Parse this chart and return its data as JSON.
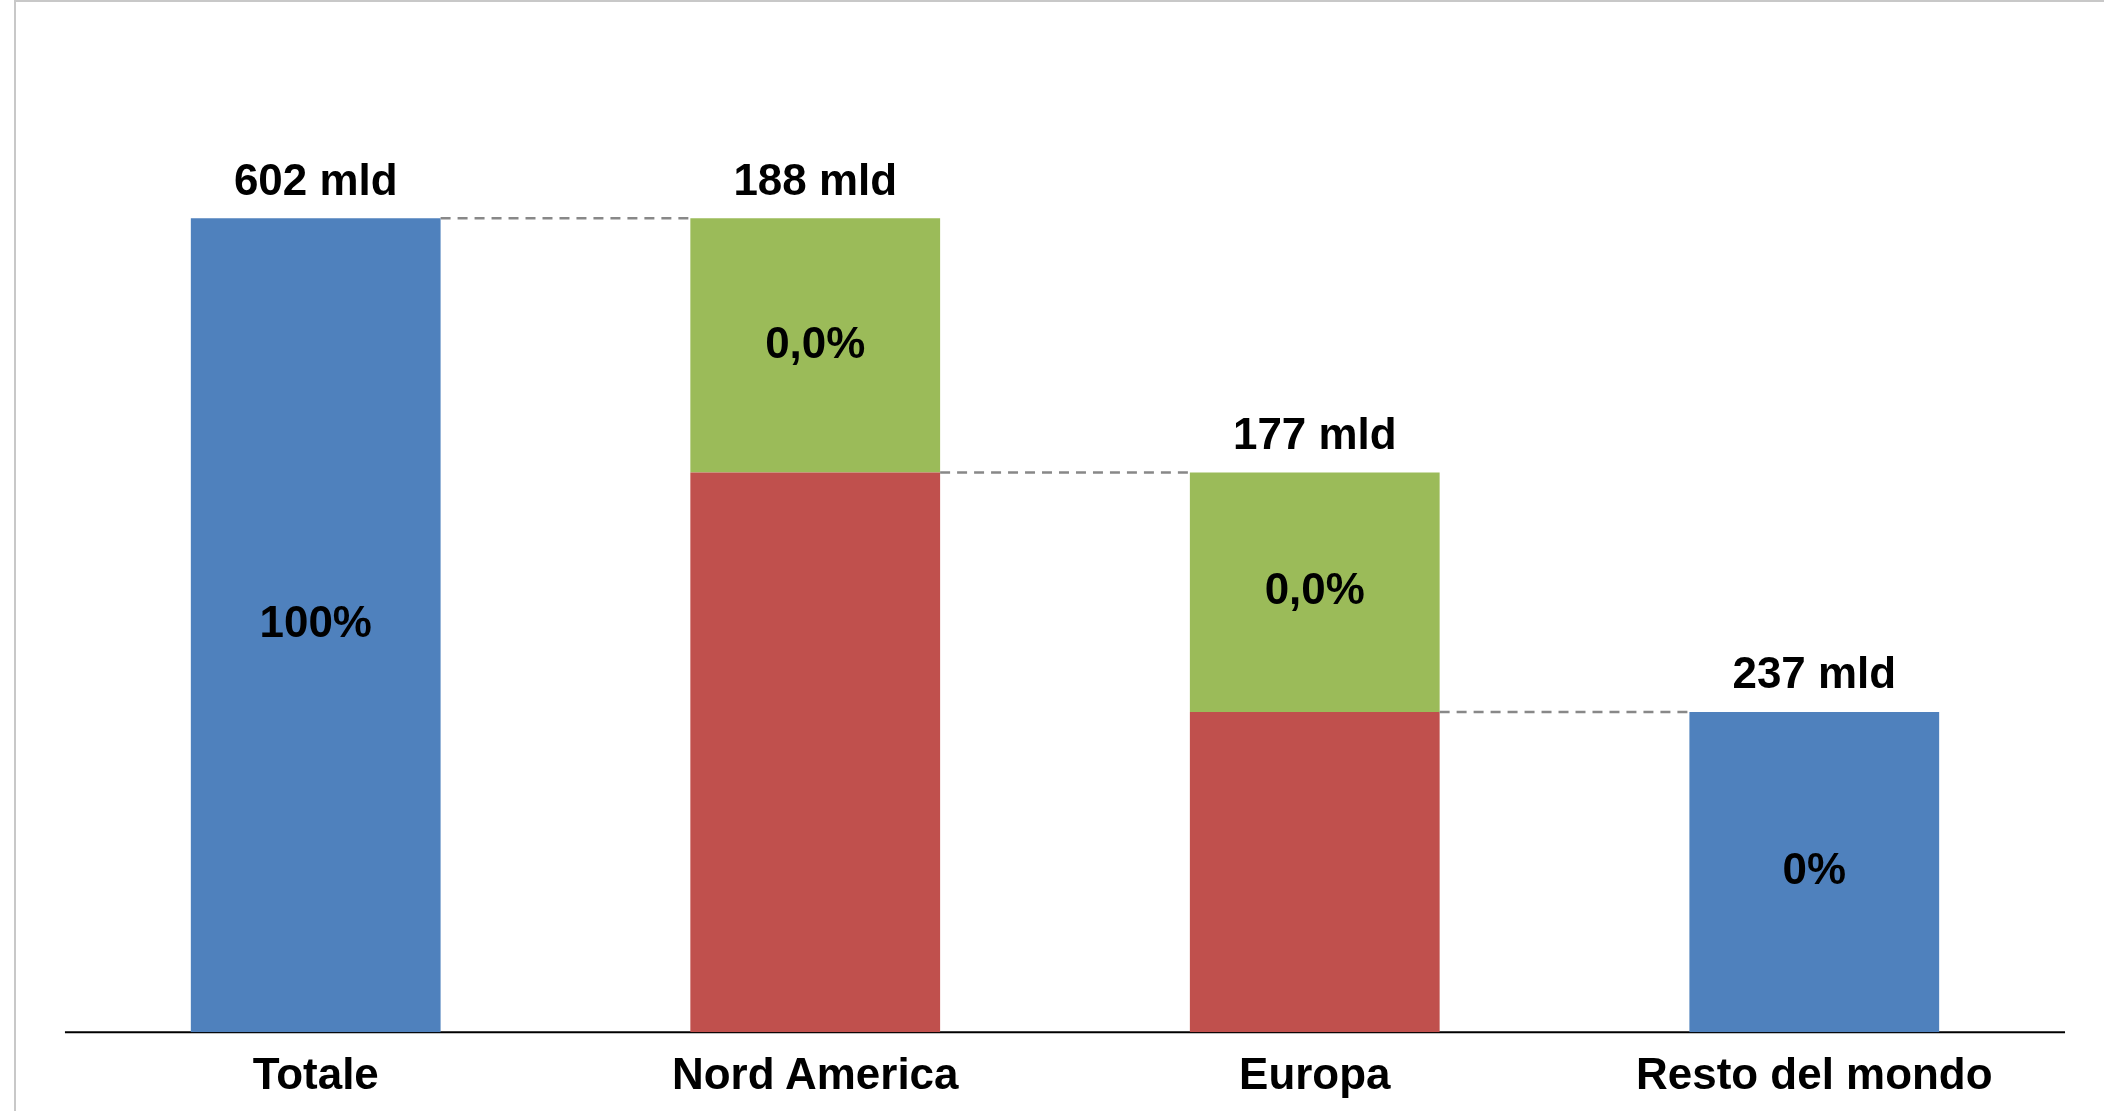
{
  "chart_data": {
    "type": "bar",
    "categories": [
      "Totale",
      "Nord America",
      "Europa",
      "Resto del mondo"
    ],
    "stacked": true,
    "tick_labels": "x",
    "grid": false,
    "legend": false,
    "series": [
      {
        "color": "#c0504d",
        "values": [
          null,
          414,
          237,
          null
        ]
      },
      {
        "color": "#4f81bd",
        "values": [
          602,
          null,
          null,
          237
        ],
        "value_labels": [
          "602 mld",
          null,
          null,
          "237 mld"
        ]
      },
      {
        "color": "#9bbb59",
        "values": [
          null,
          188,
          177,
          null
        ],
        "value_labels": [
          null,
          "188 mld",
          "177 mld",
          null
        ]
      }
    ],
    "annotations": [
      "100%",
      "0,0%",
      "0,0%",
      "0%"
    ]
  }
}
